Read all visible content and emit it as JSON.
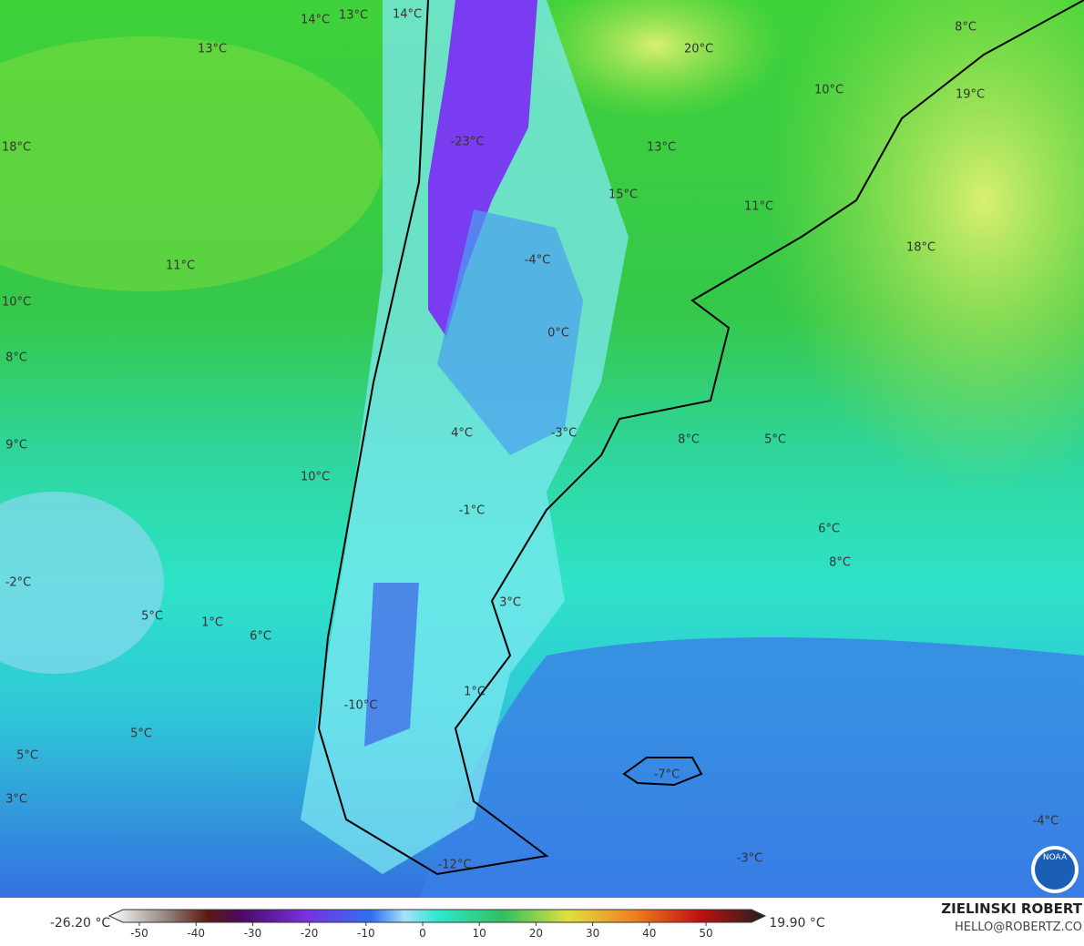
{
  "map": {
    "labels": [
      "14°C",
      "13°C",
      "14°C",
      "13°C",
      "20°C",
      "8°C",
      "10°C",
      "19°C",
      "18°C",
      "-23°C",
      "13°C",
      "15°C",
      "11°C",
      "18°C",
      "-4°C",
      "11°C",
      "10°C",
      "0°C",
      "8°C",
      "4°C",
      "-3°C",
      "8°C",
      "5°C",
      "9°C",
      "10°C",
      "-1°C",
      "6°C",
      "8°C",
      "-2°C",
      "3°C",
      "5°C",
      "1°C",
      "6°C",
      "-10°C",
      "1°C",
      "5°C",
      "5°C",
      "-7°C",
      "3°C",
      "-4°C",
      "-3°C",
      "-12°C"
    ]
  },
  "colorbar": {
    "min_label": "-26.20 °C",
    "max_label": "19.90 °C",
    "ticks": [
      -50,
      -40,
      -30,
      -20,
      -10,
      0,
      10,
      20,
      30,
      40,
      50
    ]
  },
  "credits": {
    "name": "ZIELINSKI ROBERT",
    "email": "HELLO@ROBERTZ.CO"
  },
  "logo": {
    "text": "NOAA"
  }
}
